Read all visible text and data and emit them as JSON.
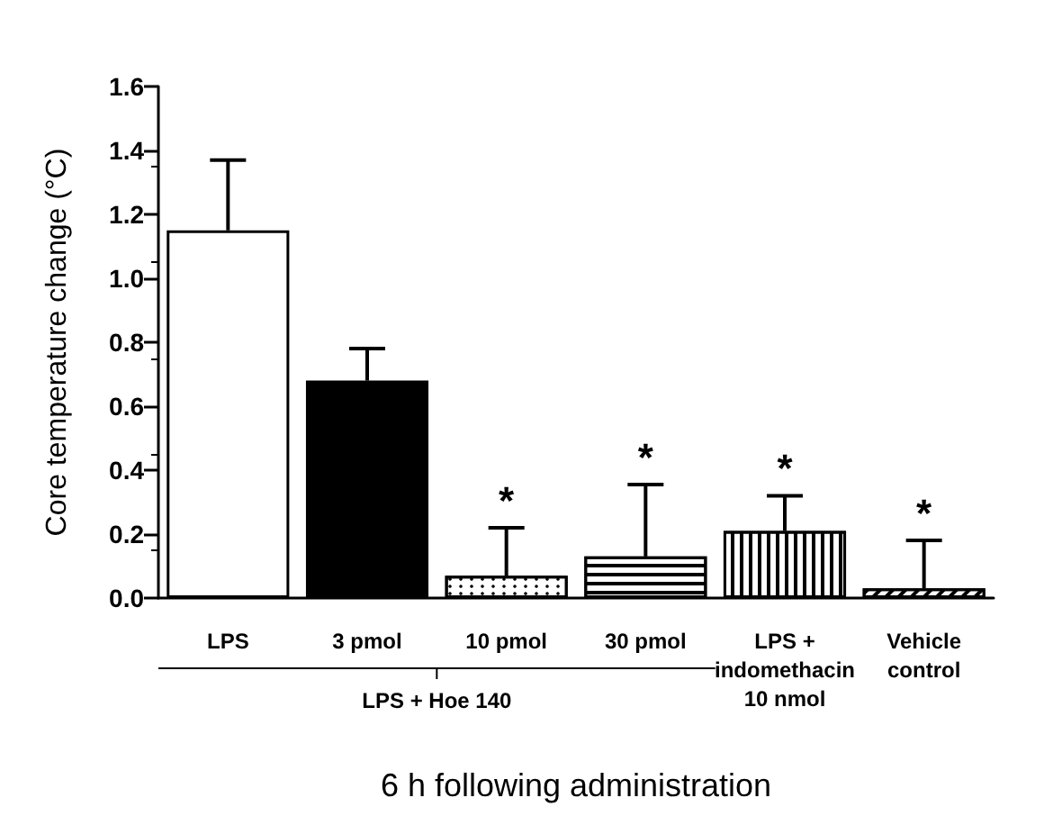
{
  "chart_data": {
    "type": "bar",
    "ylabel": "Core temperature change (°C)",
    "xlabel": "6 h following administration",
    "categories": [
      "LPS",
      "3 pmol",
      "10 pmol",
      "30 pmol",
      "LPS +\nindomethacin\n10 nmol",
      "Vehicle\ncontrol"
    ],
    "values": [
      1.15,
      0.68,
      0.07,
      0.13,
      0.21,
      0.03
    ],
    "colors": [
      "#ffffff",
      "#000000",
      "#ffffff",
      "#ffffff",
      "#ffffff",
      "#ffffff"
    ],
    "errors": [
      [
        1.15,
        1.37
      ],
      [
        0.68,
        0.78
      ],
      [
        0.07,
        0.22
      ],
      [
        0.13,
        0.355
      ],
      [
        0.21,
        0.32
      ],
      [
        0.03,
        0.18
      ]
    ],
    "ylim": [
      0,
      1.6
    ],
    "yticks": [
      {
        "value": 0,
        "label": "0.0"
      },
      0.2,
      0.4,
      0.6,
      0.8,
      {
        "value": 1,
        "label": "1.0"
      },
      1.2,
      1.4,
      1.6
    ],
    "grid": false,
    "annotations": [
      "LPS + Hoe 140",
      {
        "text": "*",
        "x": "10 pmol",
        "y": 0.22
      },
      {
        "text": "*",
        "x": "30 pmol",
        "y": 0.355
      },
      {
        "text": "*",
        "x": "LPS +\nindomethacin\n10 nmol",
        "y": 0.32
      },
      {
        "text": "*",
        "x": "Vehicle\ncontrol",
        "y": 0.18
      }
    ]
  }
}
